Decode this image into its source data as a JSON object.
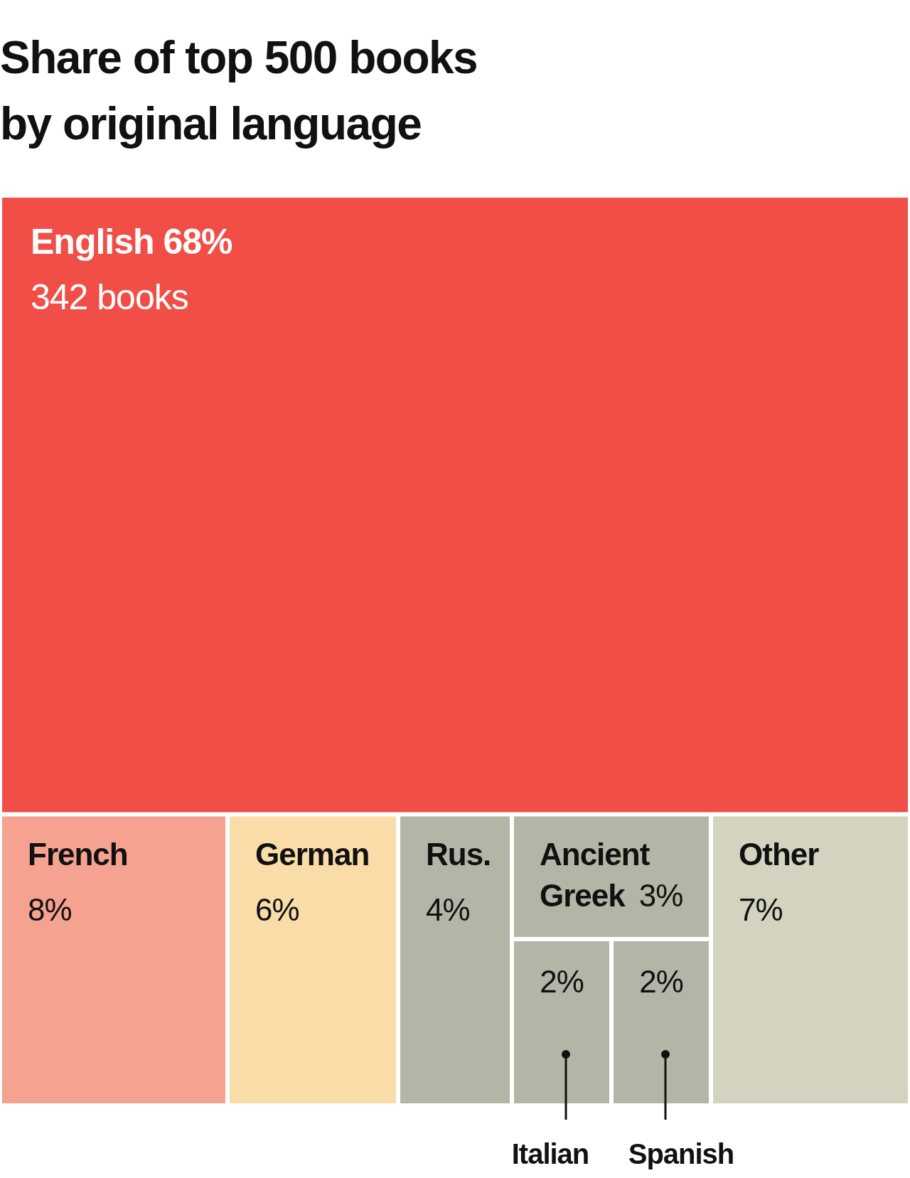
{
  "chart_data": {
    "type": "other",
    "title": "Share of top 500 books\nby original language",
    "categories": [
      "English",
      "French",
      "German",
      "Rus.",
      "Ancient Greek",
      "Italian",
      "Spanish",
      "Other"
    ],
    "values": [
      68,
      8,
      6,
      4,
      3,
      2,
      2,
      7
    ],
    "value_labels": [
      "68%",
      "8%",
      "6%",
      "4%",
      "3%",
      "2%",
      "2%",
      "7%"
    ],
    "colors": [
      "#f04e46",
      "#f6a291",
      "#fadca9",
      "#b5b5a7",
      "#b5b5a7",
      "#b5b5a7",
      "#b5b5a7",
      "#d4d3bf"
    ],
    "annotations": [
      "342 books"
    ]
  }
}
